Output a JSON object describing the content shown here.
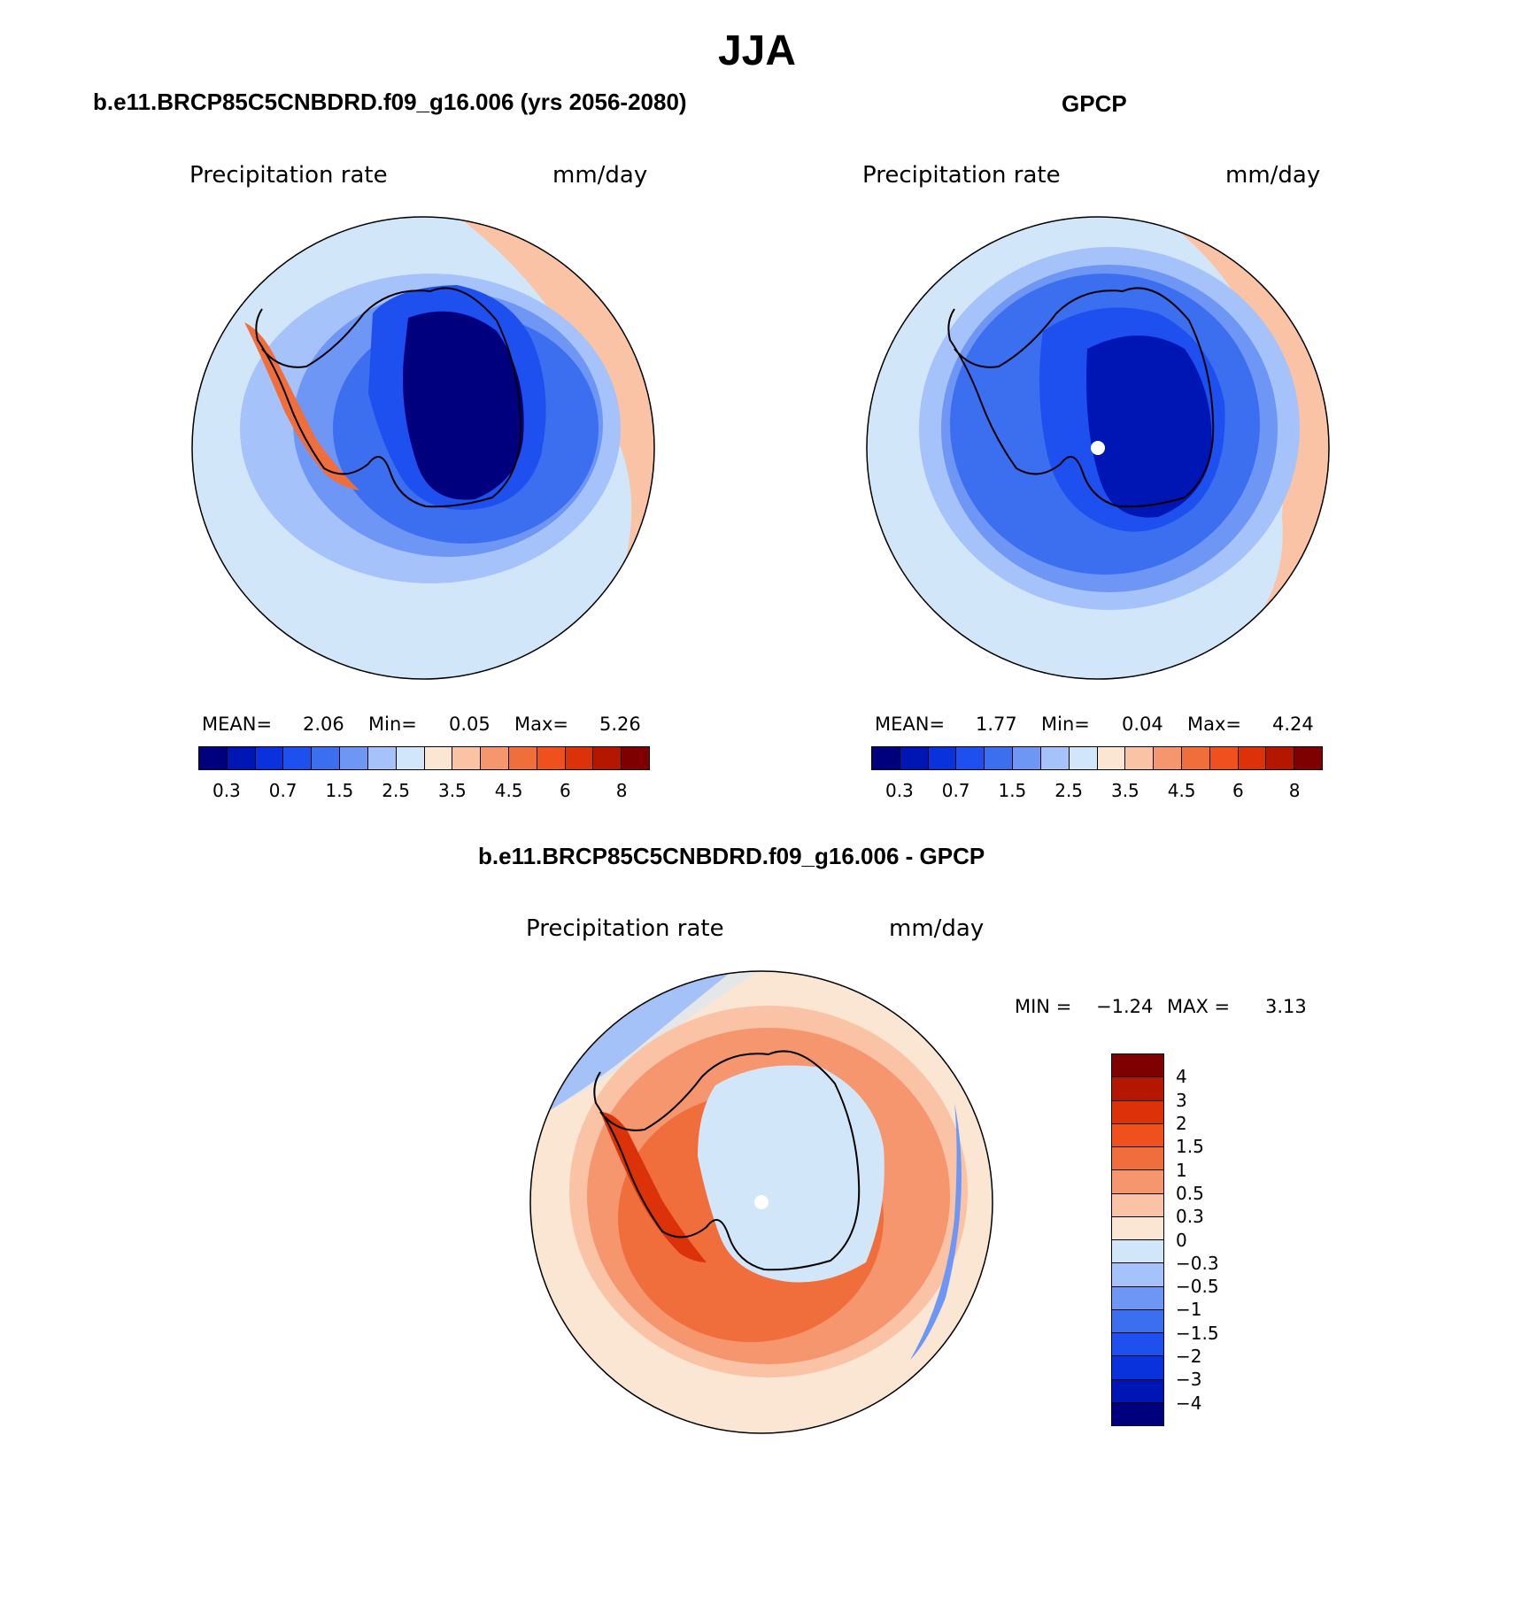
{
  "figure": {
    "season": "JJA"
  },
  "panels": [
    {
      "title": "b.e11.BRCP85C5CNBDRD.f09_g16.006 (yrs 2056-2080)",
      "variable": "Precipitation rate",
      "units": "mm/day",
      "stats": {
        "mean_label": "MEAN=",
        "mean": "2.06",
        "min_label": "Min=",
        "min": "0.05",
        "max_label": "Max=",
        "max": "5.26"
      },
      "colorbar": {
        "levels": [
          "0.3",
          "0.7",
          "1.5",
          "2.5",
          "3.5",
          "4.5",
          "6",
          "8"
        ],
        "colors": [
          "#00007f",
          "#0016b4",
          "#0a32dc",
          "#1e50f0",
          "#3c6ef0",
          "#6e96f5",
          "#a5c3fa",
          "#d2e6fa",
          "#fae6d2",
          "#fac3a5",
          "#f5966e",
          "#f06e3c",
          "#f0501e",
          "#dc320a",
          "#b41600",
          "#7f0000"
        ]
      },
      "map_colors": {
        "ocean_outer": "#d2e6fa",
        "ring1": "#a5c3fa",
        "ring2": "#6e96f5",
        "ring3": "#3c6ef0",
        "coast": "#1e50f0",
        "interior": "#00007f",
        "peninsula": "#f06e3c",
        "warm": "#fac3a5"
      }
    },
    {
      "title": "GPCP",
      "variable": "Precipitation rate",
      "units": "mm/day",
      "stats": {
        "mean_label": "MEAN=",
        "mean": "1.77",
        "min_label": "Min=",
        "min": "0.04",
        "max_label": "Max=",
        "max": "4.24"
      },
      "colorbar": {
        "levels": [
          "0.3",
          "0.7",
          "1.5",
          "2.5",
          "3.5",
          "4.5",
          "6",
          "8"
        ],
        "colors": [
          "#00007f",
          "#0016b4",
          "#0a32dc",
          "#1e50f0",
          "#3c6ef0",
          "#6e96f5",
          "#a5c3fa",
          "#d2e6fa",
          "#fae6d2",
          "#fac3a5",
          "#f5966e",
          "#f06e3c",
          "#f0501e",
          "#dc320a",
          "#b41600",
          "#7f0000"
        ]
      },
      "map_colors": {
        "ocean_outer": "#d2e6fa",
        "ring1": "#a5c3fa",
        "ring2": "#6e96f5",
        "ring3": "#3c6ef0",
        "coast": "#1e50f0",
        "interior": "#0016b4",
        "peninsula": "#3c6ef0",
        "warm": "#fac3a5"
      }
    },
    {
      "title": "b.e11.BRCP85C5CNBDRD.f09_g16.006 - GPCP",
      "variable": "Precipitation rate",
      "units": "mm/day",
      "stats": {
        "min_label": "MIN =",
        "min": "−1.24",
        "max_label": "MAX =",
        "max": "3.13"
      },
      "colorbar": {
        "levels": [
          "4",
          "3",
          "2",
          "1.5",
          "1",
          "0.5",
          "0.3",
          "0",
          "−0.3",
          "−0.5",
          "−1",
          "−1.5",
          "−2",
          "−3",
          "−4"
        ],
        "colors": [
          "#7f0000",
          "#b41600",
          "#dc320a",
          "#f0501e",
          "#f06e3c",
          "#f5966e",
          "#fac3a5",
          "#fae6d2",
          "#d2e6fa",
          "#a5c3fa",
          "#6e96f5",
          "#3c6ef0",
          "#1e50f0",
          "#0a32dc",
          "#0016b4",
          "#00007f"
        ]
      },
      "map_colors": {
        "ocean_outer": "#fae6d2",
        "ring1": "#fac3a5",
        "ring2": "#f5966e",
        "ring3": "#f06e3c",
        "interior": "#d2e6fa",
        "peninsula": "#dc320a",
        "blue_sector": "#6e96f5"
      }
    }
  ]
}
